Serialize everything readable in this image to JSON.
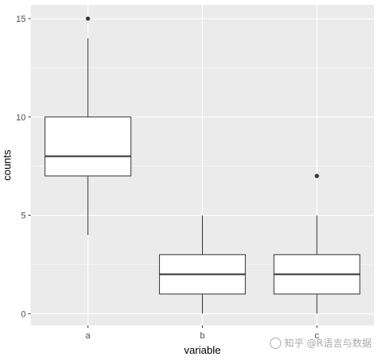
{
  "chart_data": {
    "type": "boxplot",
    "title": "",
    "xlabel": "variable",
    "ylabel": "counts",
    "ylim": [
      -0.6,
      15.7
    ],
    "yticks": [
      0,
      5,
      10,
      15
    ],
    "grid": true,
    "categories": [
      "a",
      "b",
      "c"
    ],
    "tick_labels": [
      "a",
      "b",
      "c"
    ],
    "boxes": [
      {
        "category": "a",
        "whisker_low": 4,
        "q1": 7,
        "median": 8,
        "q3": 10,
        "whisker_high": 14,
        "outliers": [
          15
        ]
      },
      {
        "category": "b",
        "whisker_low": 0,
        "q1": 1,
        "median": 2,
        "q3": 3,
        "whisker_high": 5,
        "outliers": []
      },
      {
        "category": "c",
        "whisker_low": 0,
        "q1": 1,
        "median": 2,
        "q3": 3,
        "whisker_high": 5,
        "outliers": [
          7
        ]
      }
    ],
    "colors": {
      "panel": "#ebebeb",
      "grid_major": "#ffffff",
      "box_fill": "#ffffff",
      "box_stroke": "#333333"
    }
  },
  "watermark": {
    "text": "知乎 @R语言与数据"
  }
}
